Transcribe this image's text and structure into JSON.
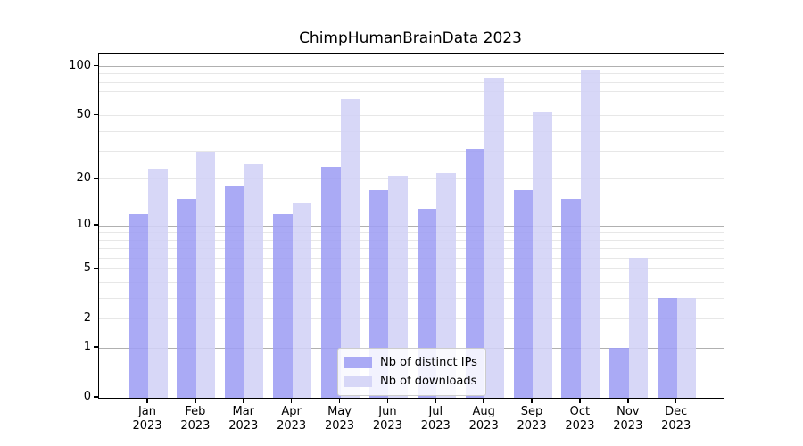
{
  "chart_data": {
    "type": "bar",
    "title": "ChimpHumanBrainData 2023",
    "categories": [
      "Jan 2023",
      "Feb 2023",
      "Mar 2023",
      "Apr 2023",
      "May 2023",
      "Jun 2023",
      "Jul 2023",
      "Aug 2023",
      "Sep 2023",
      "Oct 2023",
      "Nov 2023",
      "Dec 2023"
    ],
    "series": [
      {
        "name": "Nb of distinct IPs",
        "color": "#9e9ef4",
        "values": [
          12,
          15,
          18,
          12,
          24,
          17,
          13,
          31,
          17,
          15,
          1,
          3
        ]
      },
      {
        "name": "Nb of downloads",
        "color": "#d2d2f6",
        "values": [
          23,
          30,
          25,
          14,
          63,
          21,
          22,
          85,
          52,
          95,
          6,
          3
        ]
      }
    ],
    "xlabel": "",
    "ylabel": "",
    "y_scale": "log1p",
    "ylim": [
      0,
      120
    ],
    "y_ticks": [
      100,
      50,
      20,
      10,
      5,
      2,
      1,
      0
    ],
    "grid": true,
    "legend_position": "lower center"
  },
  "axes": {
    "y_tick_labels": [
      "100",
      "50",
      "20",
      "10",
      "5",
      "2",
      "1",
      "0"
    ]
  },
  "legend": {
    "items": [
      "Nb of distinct IPs",
      "Nb of downloads"
    ]
  },
  "colors": {
    "bar_dark": "#9e9ef4",
    "bar_light": "#d2d2f6",
    "grid_major": "#b0b0b0",
    "grid_minor": "#e7e7e7",
    "spine": "#000000",
    "legend_border": "#cccccc",
    "background": "#ffffff"
  }
}
